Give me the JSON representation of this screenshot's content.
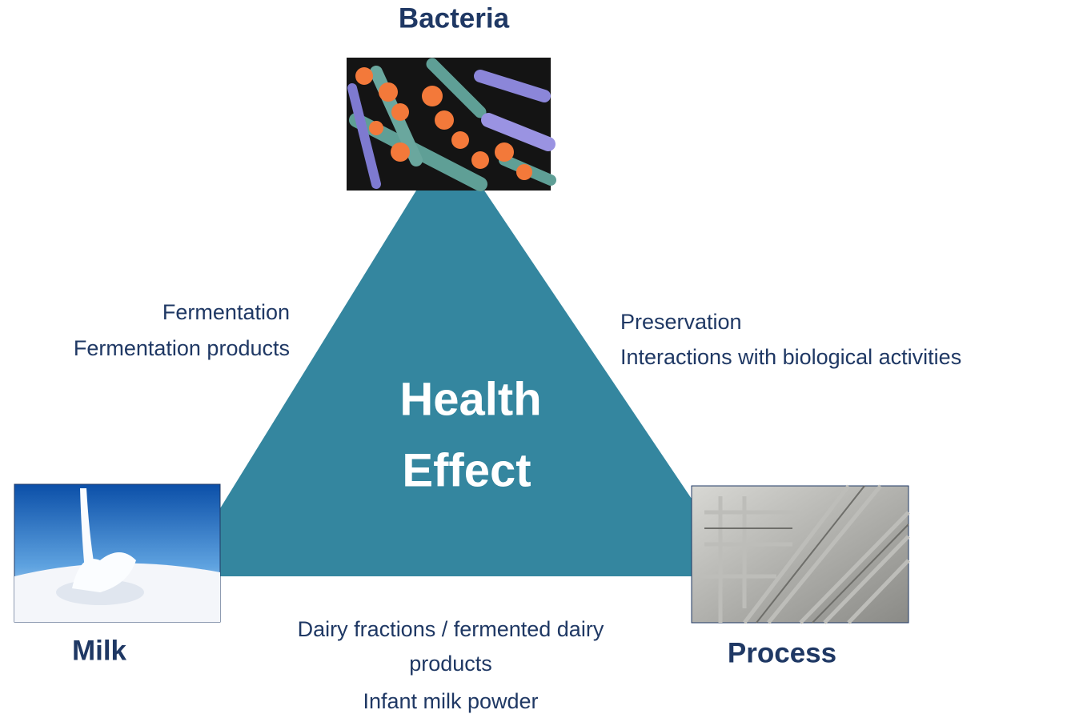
{
  "nodes": [
    {
      "label": "Bacteria"
    },
    {
      "label": "Milk"
    },
    {
      "label": "Process"
    }
  ],
  "center": {
    "lines": [
      "Health",
      "Effect"
    ]
  },
  "edges": [
    {
      "lines": [
        "Fermentation",
        "Fermentation products"
      ]
    },
    {
      "lines": [
        "Preservation",
        "Interactions with biological activities"
      ]
    },
    {
      "lines": [
        "Dairy fractions / fermented dairy",
        "products",
        "Infant milk powder"
      ]
    }
  ]
}
